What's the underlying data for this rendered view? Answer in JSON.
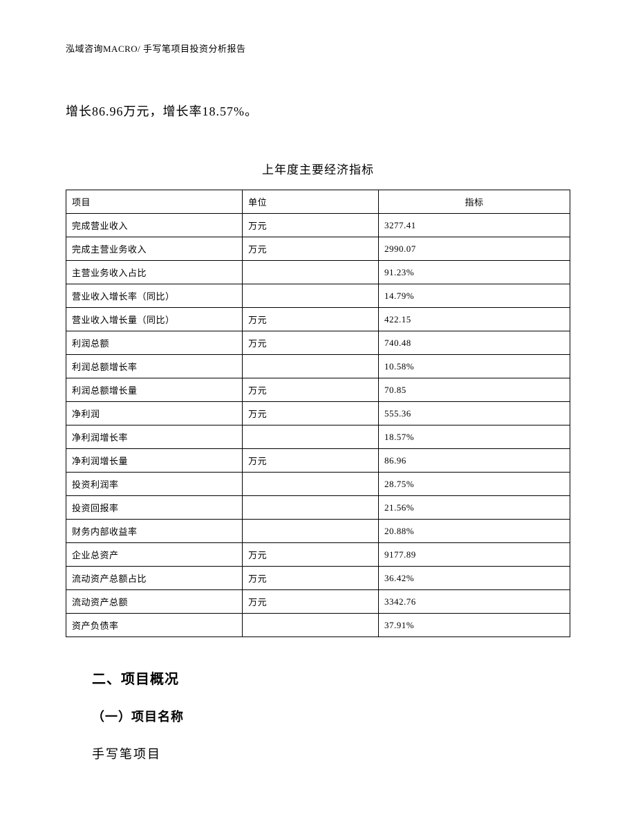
{
  "header": {
    "text": "泓域咨询MACRO/    手写笔项目投资分析报告"
  },
  "intro": {
    "text": "增长86.96万元，增长率18.57%。"
  },
  "table": {
    "title": "上年度主要经济指标",
    "columns": {
      "item": "项目",
      "unit": "单位",
      "value": "指标"
    },
    "rows": [
      {
        "item": "完成营业收入",
        "unit": "万元",
        "value": "3277.41"
      },
      {
        "item": "完成主营业务收入",
        "unit": "万元",
        "value": "2990.07"
      },
      {
        "item": "主营业务收入占比",
        "unit": "",
        "value": "91.23%"
      },
      {
        "item": "营业收入增长率（同比）",
        "unit": "",
        "value": "14.79%"
      },
      {
        "item": "营业收入增长量（同比）",
        "unit": "万元",
        "value": "422.15"
      },
      {
        "item": "利润总额",
        "unit": "万元",
        "value": "740.48"
      },
      {
        "item": "利润总额增长率",
        "unit": "",
        "value": "10.58%"
      },
      {
        "item": "利润总额增长量",
        "unit": "万元",
        "value": "70.85"
      },
      {
        "item": "净利润",
        "unit": "万元",
        "value": "555.36"
      },
      {
        "item": "净利润增长率",
        "unit": "",
        "value": "18.57%"
      },
      {
        "item": "净利润增长量",
        "unit": "万元",
        "value": "86.96"
      },
      {
        "item": "投资利润率",
        "unit": "",
        "value": "28.75%"
      },
      {
        "item": "投资回报率",
        "unit": "",
        "value": "21.56%"
      },
      {
        "item": "财务内部收益率",
        "unit": "",
        "value": "20.88%"
      },
      {
        "item": "企业总资产",
        "unit": "万元",
        "value": "9177.89"
      },
      {
        "item": "流动资产总额占比",
        "unit": "万元",
        "value": "36.42%"
      },
      {
        "item": "流动资产总额",
        "unit": "万元",
        "value": "3342.76"
      },
      {
        "item": "资产负债率",
        "unit": "",
        "value": "37.91%"
      }
    ]
  },
  "sections": {
    "section2": {
      "heading": "二、项目概况",
      "sub1": {
        "heading": "（一）项目名称",
        "text": "手写笔项目"
      }
    }
  },
  "style": {
    "page_bg": "#ffffff",
    "text_color": "#000000",
    "border_color": "#000000",
    "body_font_size": 18,
    "header_font_size": 13,
    "table_font_size": 13,
    "title_font_size": 17,
    "section_font_size": 20
  }
}
